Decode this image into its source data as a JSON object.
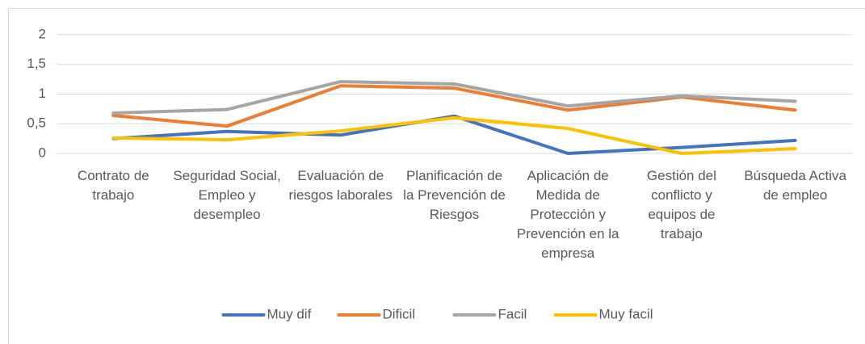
{
  "chart_data": {
    "type": "line",
    "categories": [
      "Contrato de trabajo",
      "Seguridad Social, Empleo y desempleo",
      "Evaluación de riesgos laborales",
      "Planificación de la Prevención de Riesgos",
      "Aplicación de Medida de Protección y Prevención en la empresa",
      "Gestión del conflicto y equipos de trabajo",
      "Búsqueda Activa de empleo"
    ],
    "series": [
      {
        "name": "Muy dif",
        "color": "#4472c4",
        "values": [
          0.25,
          0.37,
          0.31,
          0.63,
          0,
          0.1,
          0.22
        ]
      },
      {
        "name": "Dificil",
        "color": "#ed7d31",
        "values": [
          0.64,
          0.46,
          1.14,
          1.1,
          0.73,
          0.95,
          0.73
        ]
      },
      {
        "name": "Facil",
        "color": "#a5a5a5",
        "values": [
          0.68,
          0.74,
          1.21,
          1.17,
          0.8,
          0.97,
          0.88
        ]
      },
      {
        "name": "Muy facil",
        "color": "#ffc000",
        "values": [
          0.26,
          0.23,
          0.38,
          0.6,
          0.42,
          0,
          0.08
        ]
      }
    ],
    "ylim": [
      0,
      2
    ],
    "yticks": [
      0,
      {
        "value": 0.5,
        "label": "0,5"
      },
      1,
      {
        "value": 1.5,
        "label": "1,5"
      },
      2
    ],
    "grid": true,
    "legend": "bottom"
  }
}
